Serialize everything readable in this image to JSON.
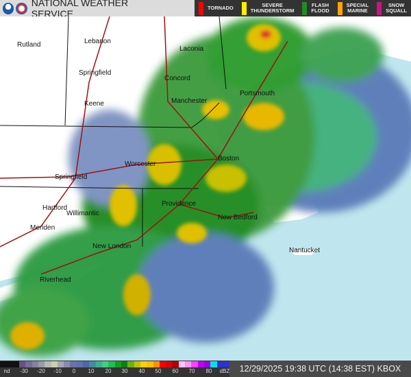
{
  "header": {
    "title": "NATIONAL WEATHER SERVICE",
    "logos": [
      "noaa-logo",
      "nws-logo"
    ]
  },
  "warnings": [
    {
      "label": "TORNADO",
      "color": "#ff0000"
    },
    {
      "label": "SEVERE\nTHUNDERSTORM",
      "color": "#ffee00"
    },
    {
      "label": "FLASH\nFLOOD",
      "color": "#228b22"
    },
    {
      "label": "SPECIAL\nMARINE",
      "color": "#ffa500"
    },
    {
      "label": "SNOW\nSQUALL",
      "color": "#c71585"
    }
  ],
  "cities": [
    "Rutland",
    "Lebanon",
    "Laconia",
    "Concord",
    "Springfield",
    "Keene",
    "Manchester",
    "Portsmouth",
    "Worcester",
    "Boston",
    "Springfield",
    "Hartford",
    "Willimantic",
    "Providence",
    "New Bedford",
    "Meriden",
    "New London",
    "Nantucket",
    "Riverhead"
  ],
  "legend": {
    "ticks": [
      "nd",
      "-30",
      "-20",
      "-10",
      "0",
      "10",
      "20",
      "30",
      "40",
      "50",
      "60",
      "70",
      "80",
      "dBZ"
    ],
    "colors": [
      "#111",
      "#111",
      "#111",
      "#6a4f8a",
      "#7a6a99",
      "#8a80a0",
      "#9a9aa8",
      "#b8b8b8",
      "#cfcfaa",
      "#a8a8b8",
      "#8a8ab0",
      "#7070a8",
      "#6070b0",
      "#4a6aa8",
      "#3e8fa0",
      "#40b090",
      "#40d080",
      "#20c050",
      "#10a020",
      "#108010",
      "#70b010",
      "#c0c000",
      "#ffd000",
      "#ffc000",
      "#ff9000",
      "#ff0000",
      "#e00000",
      "#b00000",
      "#ffc0ff",
      "#ff90ff",
      "#ff40ff",
      "#c000ff",
      "#a000e0",
      "#00e0f0",
      "#3030d0",
      "#3030d0"
    ]
  },
  "timestamp": "12/29/2025 19:38 UTC (14:38 EST) KBOX"
}
